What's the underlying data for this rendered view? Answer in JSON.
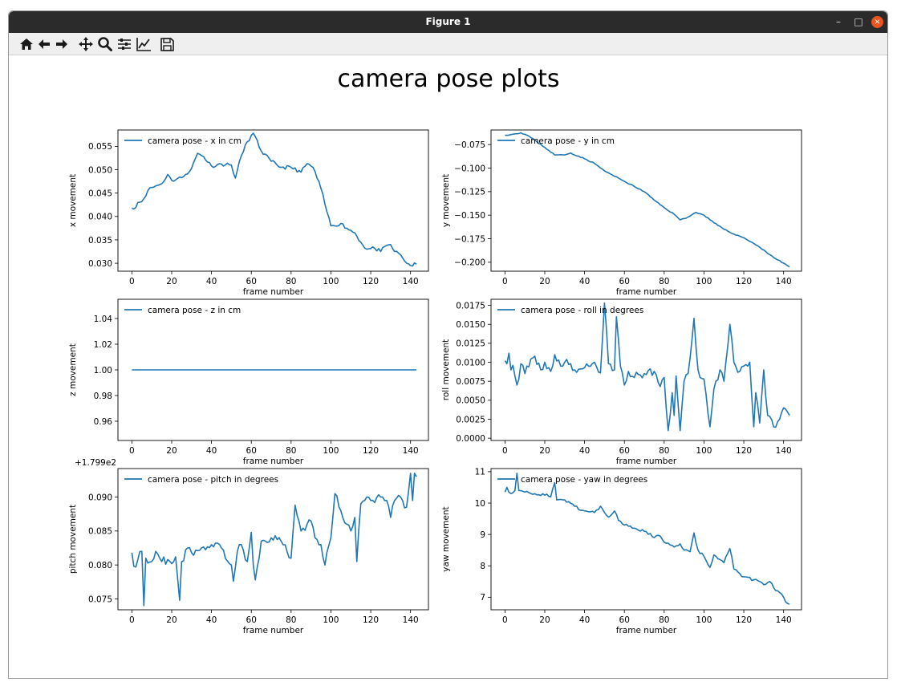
{
  "window": {
    "title": "Figure 1",
    "minimize": "–",
    "maximize": "□",
    "close": "×"
  },
  "toolbar": [
    {
      "name": "home-icon"
    },
    {
      "name": "back-arrow-icon"
    },
    {
      "name": "forward-arrow-icon"
    },
    {
      "name": "pan-move-icon"
    },
    {
      "name": "zoom-magnifier-icon"
    },
    {
      "name": "subplots-config-icon"
    },
    {
      "name": "edit-axis-icon"
    },
    {
      "name": "save-floppy-icon"
    }
  ],
  "figure": {
    "suptitle": "camera pose plots",
    "line_color": "#1f77b4"
  },
  "chart_data": [
    {
      "type": "line",
      "legend": "camera pose - x in cm",
      "legend_loc": "upper-left",
      "xlabel": "frame number",
      "ylabel": "x movement",
      "xlim": [
        -7,
        149
      ],
      "ylim": [
        0.0283,
        0.0585
      ],
      "xticks": [
        0,
        20,
        40,
        60,
        80,
        100,
        120,
        140
      ],
      "yticks": [
        0.03,
        0.035,
        0.04,
        0.045,
        0.05,
        0.055
      ],
      "ytick_labels": [
        "0.030",
        "0.035",
        "0.040",
        "0.045",
        "0.050",
        "0.055"
      ],
      "offset": "",
      "key_points": [
        [
          0,
          0.0418
        ],
        [
          1,
          0.0416
        ],
        [
          3,
          0.043
        ],
        [
          5,
          0.0432
        ],
        [
          8,
          0.0455
        ],
        [
          10,
          0.0462
        ],
        [
          15,
          0.047
        ],
        [
          18,
          0.049
        ],
        [
          20,
          0.0477
        ],
        [
          25,
          0.0483
        ],
        [
          27,
          0.049
        ],
        [
          30,
          0.0503
        ],
        [
          33,
          0.0535
        ],
        [
          36,
          0.0528
        ],
        [
          40,
          0.0508
        ],
        [
          45,
          0.0512
        ],
        [
          50,
          0.051
        ],
        [
          52,
          0.0482
        ],
        [
          55,
          0.053
        ],
        [
          58,
          0.056
        ],
        [
          61,
          0.0578
        ],
        [
          65,
          0.054
        ],
        [
          70,
          0.0518
        ],
        [
          75,
          0.0505
        ],
        [
          80,
          0.0505
        ],
        [
          85,
          0.0495
        ],
        [
          88,
          0.0513
        ],
        [
          91,
          0.0505
        ],
        [
          95,
          0.046
        ],
        [
          98,
          0.041
        ],
        [
          100,
          0.038
        ],
        [
          105,
          0.0385
        ],
        [
          108,
          0.0375
        ],
        [
          112,
          0.0365
        ],
        [
          115,
          0.0345
        ],
        [
          118,
          0.033
        ],
        [
          122,
          0.0332
        ],
        [
          125,
          0.0325
        ],
        [
          128,
          0.0338
        ],
        [
          130,
          0.034
        ],
        [
          132,
          0.0325
        ],
        [
          135,
          0.0318
        ],
        [
          137,
          0.0305
        ],
        [
          140,
          0.0295
        ],
        [
          143,
          0.0298
        ]
      ],
      "noise": 0.0004,
      "seed": 11
    },
    {
      "type": "line",
      "legend": "camera pose - y in cm",
      "legend_loc": "upper-left",
      "xlabel": "frame number",
      "ylabel": "y movement",
      "xlim": [
        -7,
        149
      ],
      "ylim": [
        -0.2095,
        -0.0595
      ],
      "xticks": [
        0,
        20,
        40,
        60,
        80,
        100,
        120,
        140
      ],
      "yticks": [
        -0.2,
        -0.175,
        -0.15,
        -0.125,
        -0.1,
        -0.075
      ],
      "ytick_labels": [
        "−0.200",
        "−0.175",
        "−0.150",
        "−0.125",
        "−0.100",
        "−0.075"
      ],
      "offset": "",
      "key_points": [
        [
          0,
          -0.065
        ],
        [
          4,
          -0.064
        ],
        [
          8,
          -0.0625
        ],
        [
          12,
          -0.066
        ],
        [
          16,
          -0.072
        ],
        [
          20,
          -0.078
        ],
        [
          25,
          -0.086
        ],
        [
          30,
          -0.086
        ],
        [
          33,
          -0.084
        ],
        [
          40,
          -0.09
        ],
        [
          45,
          -0.095
        ],
        [
          50,
          -0.103
        ],
        [
          60,
          -0.114
        ],
        [
          70,
          -0.125
        ],
        [
          75,
          -0.134
        ],
        [
          80,
          -0.142
        ],
        [
          85,
          -0.149
        ],
        [
          88,
          -0.155
        ],
        [
          92,
          -0.152
        ],
        [
          96,
          -0.147
        ],
        [
          100,
          -0.15
        ],
        [
          105,
          -0.158
        ],
        [
          110,
          -0.165
        ],
        [
          115,
          -0.17
        ],
        [
          120,
          -0.174
        ],
        [
          125,
          -0.18
        ],
        [
          130,
          -0.187
        ],
        [
          135,
          -0.195
        ],
        [
          140,
          -0.201
        ],
        [
          143,
          -0.205
        ]
      ],
      "noise": 0.0005,
      "seed": 23
    },
    {
      "type": "line",
      "legend": "camera pose - z in cm",
      "legend_loc": "upper-left",
      "xlabel": "frame number",
      "ylabel": "z movement",
      "xlim": [
        -7,
        149
      ],
      "ylim": [
        0.945,
        1.055
      ],
      "xticks": [
        0,
        20,
        40,
        60,
        80,
        100,
        120,
        140
      ],
      "yticks": [
        0.96,
        0.98,
        1.0,
        1.02,
        1.04
      ],
      "ytick_labels": [
        "0.96",
        "0.98",
        "1.00",
        "1.02",
        "1.04"
      ],
      "offset": "",
      "key_points": [
        [
          0,
          1.0
        ],
        [
          143,
          1.0
        ]
      ],
      "noise": 0,
      "seed": 1
    },
    {
      "type": "line",
      "legend": "camera pose - roll in degrees",
      "legend_loc": "upper-left",
      "xlabel": "frame number",
      "ylabel": "roll movement",
      "xlim": [
        -7,
        149
      ],
      "ylim": [
        -0.0003,
        0.0183
      ],
      "xticks": [
        0,
        20,
        40,
        60,
        80,
        100,
        120,
        140
      ],
      "yticks": [
        0.0,
        0.0025,
        0.005,
        0.0075,
        0.01,
        0.0125,
        0.015,
        0.0175
      ],
      "ytick_labels": [
        "0.0000",
        "0.0025",
        "0.0050",
        "0.0075",
        "0.0100",
        "0.0125",
        "0.0150",
        "0.0175"
      ],
      "offset": "",
      "key_points": [
        [
          0,
          0.0102
        ],
        [
          1,
          0.0098
        ],
        [
          2,
          0.0112
        ],
        [
          3,
          0.009
        ],
        [
          4,
          0.0096
        ],
        [
          5,
          0.0082
        ],
        [
          6,
          0.007
        ],
        [
          8,
          0.0098
        ],
        [
          10,
          0.0085
        ],
        [
          12,
          0.0094
        ],
        [
          15,
          0.0108
        ],
        [
          18,
          0.009
        ],
        [
          20,
          0.01
        ],
        [
          23,
          0.0088
        ],
        [
          25,
          0.011
        ],
        [
          28,
          0.0095
        ],
        [
          30,
          0.01
        ],
        [
          35,
          0.009
        ],
        [
          40,
          0.0093
        ],
        [
          45,
          0.01
        ],
        [
          48,
          0.0086
        ],
        [
          50,
          0.0178
        ],
        [
          52,
          0.0098
        ],
        [
          55,
          0.009
        ],
        [
          56,
          0.016
        ],
        [
          58,
          0.0095
        ],
        [
          60,
          0.007
        ],
        [
          62,
          0.0088
        ],
        [
          65,
          0.008
        ],
        [
          70,
          0.0085
        ],
        [
          75,
          0.0088
        ],
        [
          78,
          0.0068
        ],
        [
          80,
          0.008
        ],
        [
          82,
          0.001
        ],
        [
          84,
          0.006
        ],
        [
          85,
          0.003
        ],
        [
          86,
          0.0082
        ],
        [
          88,
          0.001
        ],
        [
          90,
          0.0075
        ],
        [
          92,
          0.0085
        ],
        [
          95,
          0.0158
        ],
        [
          97,
          0.009
        ],
        [
          100,
          0.0078
        ],
        [
          103,
          0.0015
        ],
        [
          105,
          0.0065
        ],
        [
          108,
          0.009
        ],
        [
          110,
          0.0075
        ],
        [
          113,
          0.015
        ],
        [
          115,
          0.01
        ],
        [
          118,
          0.0088
        ],
        [
          120,
          0.0095
        ],
        [
          123,
          0.01
        ],
        [
          125,
          0.0015
        ],
        [
          126,
          0.006
        ],
        [
          128,
          0.002
        ],
        [
          130,
          0.009
        ],
        [
          132,
          0.003
        ],
        [
          135,
          0.0015
        ],
        [
          138,
          0.0025
        ],
        [
          140,
          0.004
        ],
        [
          143,
          0.003
        ]
      ],
      "noise": 0.0006,
      "seed": 37
    },
    {
      "type": "line",
      "legend": "camera pose - pitch in degrees",
      "legend_loc": "upper-left",
      "xlabel": "frame number",
      "ylabel": "pitch movement",
      "xlim": [
        -7,
        149
      ],
      "ylim": [
        0.0734,
        0.0942
      ],
      "xticks": [
        0,
        20,
        40,
        60,
        80,
        100,
        120,
        140
      ],
      "yticks": [
        0.075,
        0.08,
        0.085,
        0.09
      ],
      "ytick_labels": [
        "0.075",
        "0.080",
        "0.085",
        "0.090"
      ],
      "offset": "+1.799e2",
      "key_points": [
        [
          0,
          0.0818
        ],
        [
          1,
          0.0798
        ],
        [
          3,
          0.0808
        ],
        [
          5,
          0.082
        ],
        [
          6,
          0.074
        ],
        [
          7,
          0.081
        ],
        [
          10,
          0.0805
        ],
        [
          12,
          0.082
        ],
        [
          15,
          0.0805
        ],
        [
          18,
          0.0808
        ],
        [
          20,
          0.0802
        ],
        [
          22,
          0.0812
        ],
        [
          24,
          0.0748
        ],
        [
          25,
          0.0805
        ],
        [
          28,
          0.0825
        ],
        [
          30,
          0.0818
        ],
        [
          35,
          0.0825
        ],
        [
          40,
          0.083
        ],
        [
          45,
          0.0825
        ],
        [
          50,
          0.08
        ],
        [
          51,
          0.0776
        ],
        [
          53,
          0.082
        ],
        [
          55,
          0.083
        ],
        [
          58,
          0.0805
        ],
        [
          60,
          0.0848
        ],
        [
          61,
          0.08
        ],
        [
          62,
          0.0778
        ],
        [
          65,
          0.0835
        ],
        [
          70,
          0.084
        ],
        [
          75,
          0.0835
        ],
        [
          80,
          0.081
        ],
        [
          82,
          0.0888
        ],
        [
          85,
          0.085
        ],
        [
          88,
          0.086
        ],
        [
          90,
          0.0865
        ],
        [
          92,
          0.084
        ],
        [
          95,
          0.083
        ],
        [
          97,
          0.08
        ],
        [
          100,
          0.084
        ],
        [
          102,
          0.0905
        ],
        [
          105,
          0.088
        ],
        [
          108,
          0.086
        ],
        [
          110,
          0.085
        ],
        [
          112,
          0.087
        ],
        [
          113,
          0.0805
        ],
        [
          115,
          0.089
        ],
        [
          118,
          0.09
        ],
        [
          120,
          0.0895
        ],
        [
          125,
          0.09
        ],
        [
          128,
          0.0895
        ],
        [
          130,
          0.087
        ],
        [
          132,
          0.0895
        ],
        [
          135,
          0.09
        ],
        [
          138,
          0.0885
        ],
        [
          140,
          0.0935
        ],
        [
          141,
          0.0895
        ],
        [
          142,
          0.0935
        ],
        [
          143,
          0.093
        ]
      ],
      "noise": 0.0006,
      "seed": 53
    },
    {
      "type": "line",
      "legend": "camera pose - yaw in degrees",
      "legend_loc": "upper-left",
      "xlabel": "frame number",
      "ylabel": "yaw movement",
      "xlim": [
        -7,
        149
      ],
      "ylim": [
        6.6,
        11.1
      ],
      "xticks": [
        0,
        20,
        40,
        60,
        80,
        100,
        120,
        140
      ],
      "yticks": [
        7,
        8,
        9,
        10,
        11
      ],
      "ytick_labels": [
        "7",
        "8",
        "9",
        "10",
        "11"
      ],
      "offset": "",
      "key_points": [
        [
          0,
          10.35
        ],
        [
          1,
          10.5
        ],
        [
          3,
          10.3
        ],
        [
          5,
          10.4
        ],
        [
          6,
          10.95
        ],
        [
          7,
          10.4
        ],
        [
          10,
          10.35
        ],
        [
          15,
          10.3
        ],
        [
          20,
          10.25
        ],
        [
          23,
          10.2
        ],
        [
          25,
          10.65
        ],
        [
          26,
          10.1
        ],
        [
          30,
          10.1
        ],
        [
          35,
          9.9
        ],
        [
          40,
          9.75
        ],
        [
          45,
          9.7
        ],
        [
          48,
          9.9
        ],
        [
          50,
          9.7
        ],
        [
          52,
          9.55
        ],
        [
          55,
          9.75
        ],
        [
          57,
          9.45
        ],
        [
          60,
          9.3
        ],
        [
          65,
          9.2
        ],
        [
          70,
          9.1
        ],
        [
          75,
          8.9
        ],
        [
          78,
          8.95
        ],
        [
          80,
          8.75
        ],
        [
          85,
          8.6
        ],
        [
          88,
          8.7
        ],
        [
          90,
          8.5
        ],
        [
          93,
          8.45
        ],
        [
          95,
          9.05
        ],
        [
          97,
          8.5
        ],
        [
          100,
          8.3
        ],
        [
          103,
          7.95
        ],
        [
          105,
          8.35
        ],
        [
          108,
          8.2
        ],
        [
          110,
          8.1
        ],
        [
          113,
          8.55
        ],
        [
          115,
          7.9
        ],
        [
          118,
          7.75
        ],
        [
          120,
          7.65
        ],
        [
          125,
          7.55
        ],
        [
          128,
          7.5
        ],
        [
          130,
          7.4
        ],
        [
          133,
          7.5
        ],
        [
          135,
          7.3
        ],
        [
          138,
          7.15
        ],
        [
          140,
          7.0
        ],
        [
          141,
          6.85
        ],
        [
          142,
          6.8
        ],
        [
          143,
          6.78
        ]
      ],
      "noise": 0.05,
      "seed": 71
    }
  ]
}
